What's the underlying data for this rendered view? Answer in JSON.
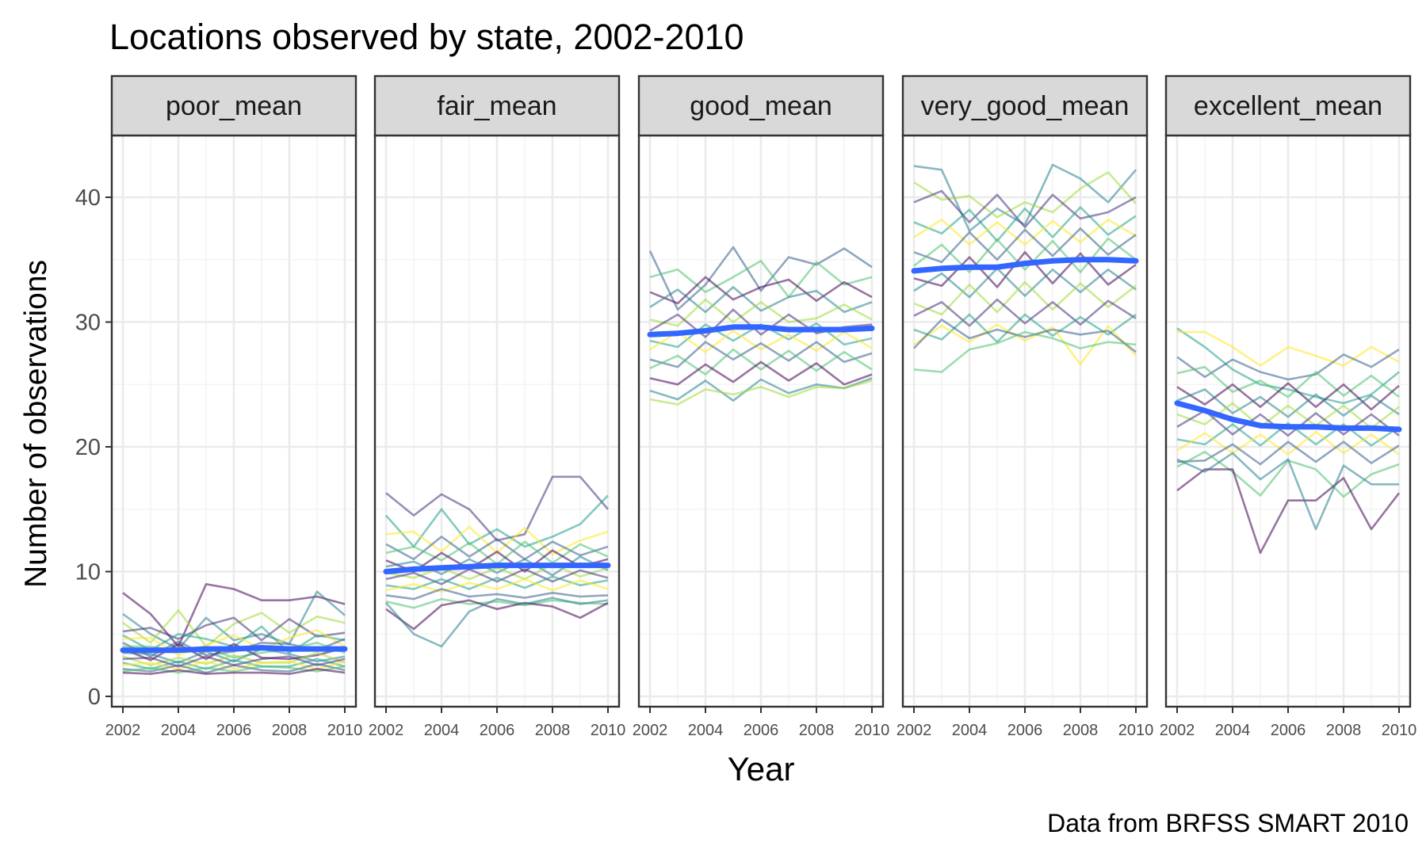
{
  "title": "Locations observed by state, 2002-2010",
  "caption": "Data from BRFSS SMART 2010",
  "chart_data": {
    "type": "line",
    "title": "Locations observed by state, 2002-2010",
    "xlabel": "Year",
    "ylabel": "Number of observations",
    "caption": "Data from BRFSS SMART 2010",
    "x": [
      2002,
      2003,
      2004,
      2005,
      2006,
      2007,
      2008,
      2009,
      2010
    ],
    "x_ticks": [
      "2002",
      "2004",
      "2006",
      "2008",
      "2010"
    ],
    "y_ticks": [
      "0",
      "10",
      "20",
      "30",
      "40"
    ],
    "ylim": [
      0,
      45
    ],
    "xlim": [
      2002,
      2010
    ],
    "grid": true,
    "legend": "none",
    "smooth_color": "#3366FF",
    "palette": [
      "#440154",
      "#46327E",
      "#365C8D",
      "#277F8E",
      "#1FA187",
      "#4AC16D",
      "#A0DA39",
      "#FDE725"
    ],
    "facets": [
      {
        "label": "poor_mean",
        "trend": [
          3.7,
          3.7,
          3.7,
          3.8,
          3.8,
          3.9,
          3.8,
          3.8,
          3.8
        ],
        "series": [
          [
            8.3,
            6.6,
            4.0,
            9.0,
            8.6,
            7.7,
            7.7,
            8.0,
            7.4
          ],
          [
            6.6,
            5.0,
            3.8,
            6.3,
            4.5,
            5.0,
            4.2,
            8.4,
            6.5
          ],
          [
            5.9,
            4.3,
            6.9,
            4.0,
            5.8,
            6.7,
            5.1,
            6.4,
            5.9
          ],
          [
            5.2,
            5.5,
            4.6,
            5.7,
            6.3,
            4.5,
            6.2,
            4.8,
            5.1
          ],
          [
            4.9,
            3.7,
            5.0,
            4.6,
            4.0,
            5.6,
            3.5,
            4.9,
            4.5
          ],
          [
            4.6,
            4.7,
            3.3,
            4.1,
            4.9,
            3.8,
            4.7,
            5.3,
            4.0
          ],
          [
            4.3,
            3.2,
            4.4,
            3.3,
            3.6,
            4.3,
            4.2,
            3.7,
            4.6
          ],
          [
            4.0,
            4.0,
            3.6,
            3.9,
            3.1,
            3.5,
            3.8,
            4.3,
            3.5
          ],
          [
            3.8,
            2.9,
            4.2,
            3.0,
            4.2,
            3.1,
            3.0,
            3.3,
            3.9
          ],
          [
            3.5,
            3.4,
            2.7,
            3.6,
            2.8,
            3.8,
            3.4,
            2.8,
            3.2
          ],
          [
            3.2,
            2.5,
            3.1,
            2.6,
            3.3,
            2.7,
            2.7,
            3.5,
            2.7
          ],
          [
            3.0,
            3.1,
            2.4,
            3.2,
            2.5,
            3.0,
            3.2,
            2.5,
            3.0
          ],
          [
            2.7,
            2.2,
            2.8,
            2.2,
            2.9,
            2.4,
            2.4,
            3.0,
            2.4
          ],
          [
            2.5,
            2.7,
            2.2,
            2.8,
            2.2,
            2.7,
            2.8,
            2.2,
            2.8
          ],
          [
            2.2,
            2.0,
            2.5,
            1.9,
            2.5,
            2.1,
            2.0,
            2.6,
            2.1
          ],
          [
            2.0,
            2.3,
            1.9,
            2.3,
            2.0,
            2.4,
            2.3,
            2.0,
            2.4
          ],
          [
            1.9,
            1.8,
            2.1,
            1.8,
            1.9,
            1.9,
            1.8,
            2.2,
            1.9
          ]
        ]
      },
      {
        "label": "fair_mean",
        "trend": [
          10.0,
          10.2,
          10.3,
          10.4,
          10.5,
          10.5,
          10.5,
          10.5,
          10.5
        ],
        "series": [
          [
            16.3,
            14.5,
            16.2,
            15.0,
            12.5,
            13.0,
            17.6,
            17.6,
            15.0
          ],
          [
            14.5,
            12.0,
            15.0,
            12.2,
            13.4,
            12.0,
            12.8,
            13.8,
            16.1
          ],
          [
            13.0,
            13.2,
            11.6,
            13.6,
            11.5,
            13.5,
            11.4,
            12.5,
            13.2
          ],
          [
            12.2,
            11.0,
            12.8,
            11.2,
            12.6,
            11.0,
            12.4,
            11.3,
            12.0
          ],
          [
            11.5,
            12.0,
            10.9,
            12.3,
            10.6,
            12.4,
            10.7,
            12.2,
            11.2
          ],
          [
            10.9,
            10.0,
            11.5,
            10.2,
            11.6,
            10.0,
            11.7,
            10.4,
            11.0
          ],
          [
            10.4,
            10.8,
            9.8,
            11.0,
            9.9,
            11.0,
            9.7,
            11.2,
            10.1
          ],
          [
            9.9,
            9.5,
            10.3,
            9.4,
            10.3,
            9.4,
            10.6,
            9.6,
            10.3
          ],
          [
            9.4,
            9.9,
            9.0,
            10.2,
            9.2,
            10.2,
            9.2,
            10.1,
            9.5
          ],
          [
            8.9,
            8.6,
            9.4,
            8.6,
            9.5,
            8.7,
            9.6,
            8.9,
            9.3
          ],
          [
            8.5,
            9.0,
            8.4,
            9.1,
            8.6,
            9.4,
            8.5,
            9.3,
            8.6
          ],
          [
            8.1,
            7.8,
            8.6,
            8.0,
            8.2,
            7.9,
            8.3,
            8.0,
            8.1
          ],
          [
            7.6,
            7.1,
            7.8,
            7.4,
            7.6,
            7.3,
            7.7,
            7.5,
            7.4
          ],
          [
            7.0,
            5.4,
            7.3,
            7.7,
            7.0,
            7.5,
            7.2,
            6.3,
            7.5
          ],
          [
            7.5,
            5.0,
            4.0,
            6.8,
            7.8,
            7.4,
            7.9,
            7.4,
            7.7
          ]
        ]
      },
      {
        "label": "good_mean",
        "trend": [
          29.0,
          29.1,
          29.3,
          29.6,
          29.6,
          29.4,
          29.4,
          29.4,
          29.5
        ],
        "series": [
          [
            35.7,
            31.0,
            33.0,
            36.0,
            32.5,
            35.2,
            34.6,
            35.9,
            34.4
          ],
          [
            33.6,
            34.2,
            32.4,
            33.6,
            34.9,
            32.0,
            34.8,
            33.0,
            33.6
          ],
          [
            32.4,
            31.5,
            33.6,
            31.8,
            32.8,
            33.4,
            31.7,
            33.2,
            32.0
          ],
          [
            31.2,
            32.6,
            30.8,
            32.8,
            30.9,
            32.0,
            32.5,
            30.8,
            31.6
          ],
          [
            30.2,
            29.7,
            31.8,
            30.0,
            31.6,
            30.0,
            30.3,
            31.4,
            30.2
          ],
          [
            29.3,
            30.6,
            28.8,
            31.0,
            29.0,
            30.6,
            29.1,
            29.6,
            29.8
          ],
          [
            28.5,
            28.0,
            29.8,
            28.5,
            29.8,
            28.6,
            29.9,
            28.2,
            28.7
          ],
          [
            27.8,
            29.2,
            27.6,
            29.3,
            27.8,
            29.0,
            27.7,
            29.2,
            27.9
          ],
          [
            27.0,
            26.4,
            28.4,
            27.0,
            28.3,
            26.9,
            28.4,
            26.8,
            27.5
          ],
          [
            26.3,
            27.3,
            25.8,
            27.8,
            26.2,
            27.7,
            26.1,
            27.6,
            26.2
          ],
          [
            25.5,
            25.0,
            26.6,
            25.2,
            26.8,
            25.3,
            26.7,
            25.0,
            25.8
          ],
          [
            24.5,
            23.8,
            25.3,
            23.7,
            25.4,
            24.3,
            25.0,
            24.7,
            25.5
          ],
          [
            23.8,
            23.4,
            24.6,
            24.2,
            24.8,
            24.0,
            24.8,
            24.7,
            25.3
          ]
        ]
      },
      {
        "label": "very_good_mean",
        "trend": [
          34.1,
          34.3,
          34.4,
          34.4,
          34.7,
          34.9,
          35.0,
          35.0,
          34.9
        ],
        "series": [
          [
            42.5,
            42.2,
            37.3,
            39.1,
            37.8,
            42.6,
            41.5,
            39.6,
            42.2
          ],
          [
            41.2,
            39.8,
            40.1,
            38.4,
            39.6,
            38.8,
            40.7,
            42.0,
            39.5
          ],
          [
            39.6,
            40.5,
            38.0,
            40.2,
            37.6,
            40.2,
            38.3,
            38.8,
            40.0
          ],
          [
            38.0,
            37.1,
            39.0,
            36.5,
            39.1,
            36.8,
            39.2,
            37.0,
            38.5
          ],
          [
            36.8,
            38.2,
            36.2,
            38.0,
            36.2,
            38.1,
            36.4,
            38.2,
            36.9
          ],
          [
            35.6,
            34.8,
            37.2,
            35.0,
            37.4,
            35.3,
            37.5,
            35.4,
            37.0
          ],
          [
            34.5,
            36.2,
            34.0,
            36.6,
            34.2,
            36.5,
            34.0,
            36.7,
            35.0
          ],
          [
            33.5,
            32.9,
            35.2,
            32.8,
            35.6,
            33.1,
            35.5,
            33.0,
            34.6
          ],
          [
            32.5,
            33.9,
            32.0,
            34.3,
            32.1,
            34.2,
            32.4,
            34.2,
            32.6
          ],
          [
            31.5,
            30.6,
            33.0,
            30.8,
            33.2,
            31.0,
            33.1,
            31.2,
            32.9
          ],
          [
            30.5,
            31.6,
            29.7,
            31.8,
            29.9,
            31.6,
            29.8,
            31.7,
            30.3
          ],
          [
            29.4,
            28.6,
            30.6,
            28.4,
            30.6,
            28.9,
            30.4,
            29.0,
            30.6
          ],
          [
            28.2,
            29.7,
            28.4,
            29.8,
            28.5,
            29.6,
            26.6,
            29.7,
            27.3
          ],
          [
            27.9,
            30.2,
            28.7,
            29.4,
            28.8,
            29.4,
            29.0,
            29.3,
            27.6
          ],
          [
            26.2,
            26.0,
            27.8,
            28.3,
            29.2,
            28.7,
            27.9,
            28.4,
            28.2
          ]
        ]
      },
      {
        "label": "excellent_mean",
        "trend": [
          23.5,
          22.9,
          22.2,
          21.7,
          21.6,
          21.6,
          21.5,
          21.5,
          21.4
        ],
        "series": [
          [
            29.5,
            28.0,
            26.2,
            25.0,
            24.6,
            24.0,
            23.5,
            24.2,
            26.0
          ],
          [
            29.2,
            29.2,
            28.0,
            26.5,
            28.0,
            27.3,
            26.5,
            28.0,
            26.8
          ],
          [
            27.2,
            25.6,
            27.0,
            26.0,
            25.4,
            25.8,
            27.4,
            26.4,
            27.8
          ],
          [
            25.9,
            26.4,
            24.4,
            25.3,
            24.0,
            26.0,
            24.1,
            25.7,
            24.0
          ],
          [
            24.8,
            23.4,
            25.0,
            23.2,
            25.1,
            23.2,
            25.0,
            23.0,
            24.9
          ],
          [
            23.7,
            24.6,
            22.7,
            24.0,
            22.4,
            24.2,
            22.5,
            24.1,
            22.6
          ],
          [
            22.6,
            21.8,
            23.5,
            21.6,
            23.3,
            21.7,
            23.3,
            21.5,
            23.2
          ],
          [
            21.6,
            22.9,
            21.0,
            22.6,
            20.9,
            22.7,
            21.0,
            22.6,
            20.9
          ],
          [
            20.6,
            20.2,
            21.8,
            20.1,
            21.9,
            20.2,
            21.8,
            20.1,
            21.6
          ],
          [
            19.7,
            21.1,
            19.5,
            21.0,
            19.4,
            21.2,
            19.5,
            21.0,
            19.4
          ],
          [
            18.8,
            18.9,
            20.2,
            18.6,
            20.4,
            18.8,
            20.4,
            18.7,
            20.1
          ],
          [
            18.4,
            19.6,
            18.0,
            16.1,
            18.9,
            18.2,
            16.0,
            17.8,
            18.6
          ],
          [
            16.5,
            18.2,
            18.2,
            11.5,
            15.7,
            15.7,
            17.5,
            13.4,
            16.3
          ],
          [
            19.0,
            18.0,
            19.5,
            17.4,
            19.0,
            13.4,
            18.5,
            17.0,
            17.0
          ]
        ]
      }
    ]
  }
}
